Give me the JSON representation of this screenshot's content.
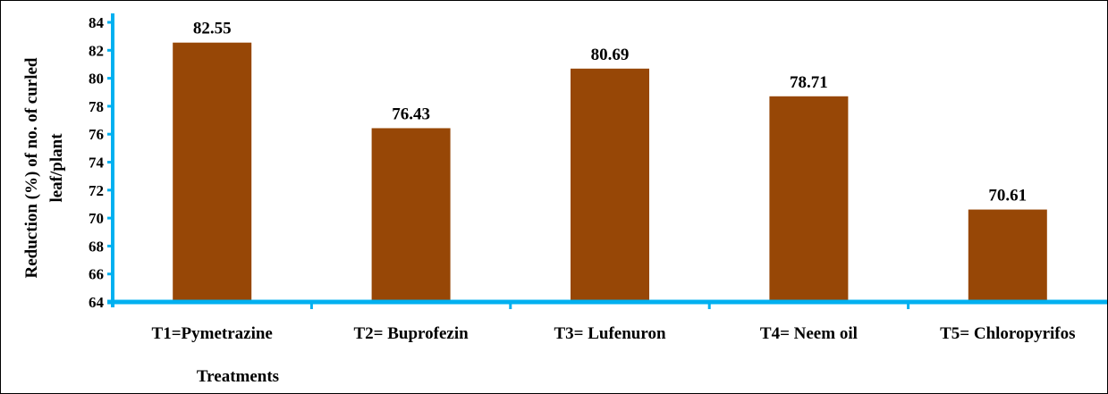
{
  "chart_data": {
    "type": "bar",
    "categories": [
      "T1=Pymetrazine",
      "T2= Buprofezin",
      "T3=  Lufenuron",
      "T4= Neem oil",
      "T5= Chloropyrifos"
    ],
    "values": [
      82.55,
      76.43,
      80.69,
      78.71,
      70.61
    ],
    "data_labels": [
      "82.55",
      "76.43",
      "80.69",
      "78.71",
      "70.61"
    ],
    "xlabel": "Treatments",
    "ylabel_lines": [
      "Reduction (%) of no. of curled",
      "leaf/plant"
    ],
    "ylim": [
      64,
      84
    ],
    "yticks": [
      64,
      66,
      68,
      70,
      72,
      74,
      76,
      78,
      80,
      82,
      84
    ],
    "grid": false,
    "legend": "none",
    "colors": {
      "bar": "#974706",
      "axis": "#00b0f0",
      "text": "#000000"
    }
  }
}
